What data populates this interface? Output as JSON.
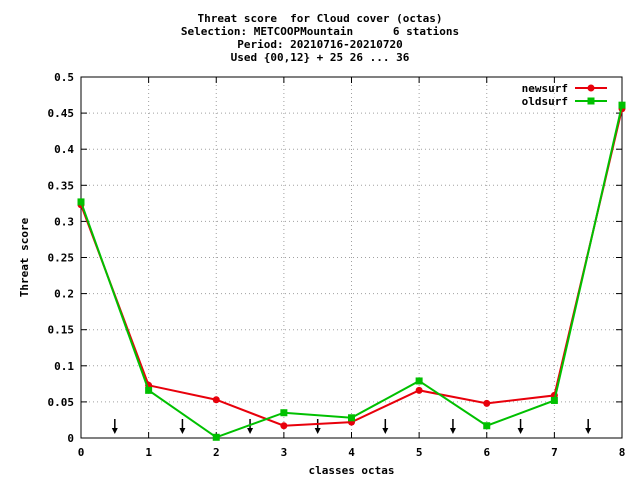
{
  "chart_data": {
    "type": "line",
    "title_lines": [
      "Threat score  for Cloud cover (octas)",
      "Selection: METCOOPMountain      6 stations",
      "Period: 20210716-20210720",
      "Used {00,12} + 25 26 ... 36"
    ],
    "xlabel": "classes octas",
    "ylabel": "Threat score",
    "xlim": [
      0,
      8
    ],
    "ylim": [
      0,
      0.5
    ],
    "xticks": [
      0,
      1,
      2,
      3,
      4,
      5,
      6,
      7,
      8
    ],
    "yticks": [
      0,
      0.05,
      0.1,
      0.15,
      0.2,
      0.25,
      0.3,
      0.35,
      0.4,
      0.45,
      0.5
    ],
    "grid": true,
    "legend_position": "top-right",
    "x": [
      0,
      1,
      2,
      3,
      4,
      5,
      6,
      7,
      8
    ],
    "series": [
      {
        "name": "newsurf",
        "color": "#e8000b",
        "values": [
          0.323,
          0.073,
          0.053,
          0.017,
          0.022,
          0.066,
          0.048,
          0.059,
          0.456
        ]
      },
      {
        "name": "oldsurf",
        "color": "#00c000",
        "values": [
          0.327,
          0.066,
          0.001,
          0.035,
          0.028,
          0.079,
          0.017,
          0.052,
          0.461
        ]
      }
    ],
    "arrow_markers_x": [
      0.5,
      1.5,
      2.5,
      3.5,
      4.5,
      5.5,
      6.5,
      7.5
    ]
  }
}
